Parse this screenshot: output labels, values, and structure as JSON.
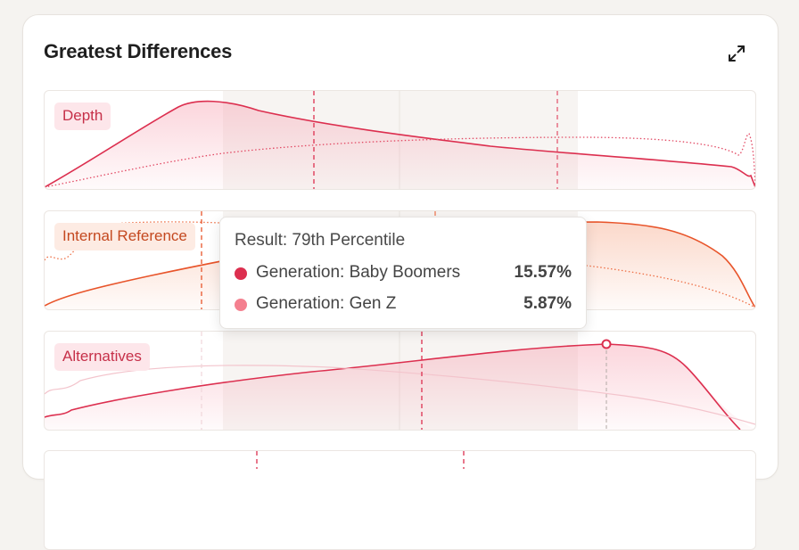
{
  "card": {
    "title": "Greatest Differences"
  },
  "icons": {
    "expand": "expand-arrows-icon"
  },
  "panels": [
    {
      "label": "Depth",
      "color": "#dc2f4f",
      "chip_style": "red"
    },
    {
      "label": "Internal Reference",
      "color": "#e8542a",
      "chip_style": "orange"
    },
    {
      "label": "Alternatives",
      "color": "#dc2f4f",
      "chip_style": "red"
    }
  ],
  "tooltip": {
    "title": "Result: 79th Percentile",
    "rows": [
      {
        "label": "Generation: Baby Boomers",
        "value": "15.57%",
        "color": "#dc2f4f"
      },
      {
        "label": "Generation: Gen Z",
        "value": "5.87%",
        "color": "#f4808f"
      }
    ]
  }
}
